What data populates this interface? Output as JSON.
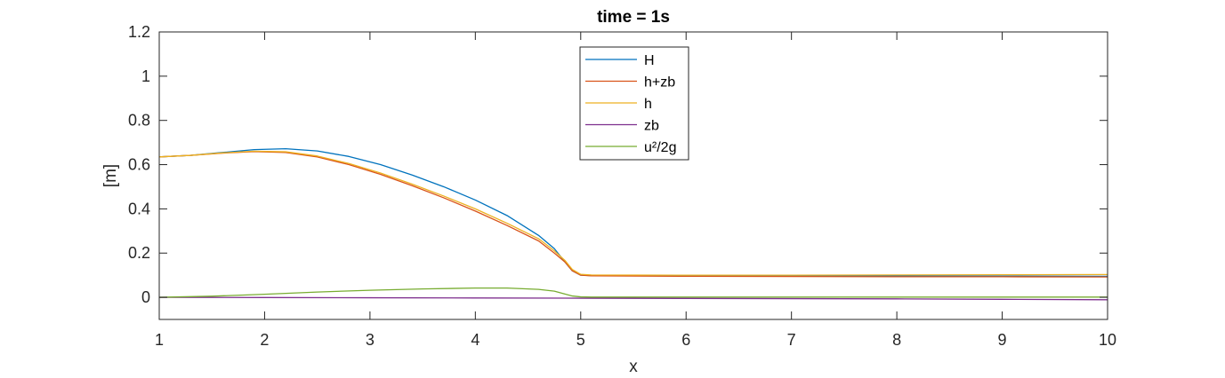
{
  "chart_data": {
    "type": "line",
    "title": "time = 1s",
    "xlabel": "x",
    "ylabel": "[m]",
    "xlim": [
      1,
      10
    ],
    "ylim": [
      -0.1,
      1.2
    ],
    "xticks": [
      1,
      2,
      3,
      4,
      5,
      6,
      7,
      8,
      9,
      10
    ],
    "yticks": [
      0,
      0.2,
      0.4,
      0.6,
      0.8,
      1,
      1.2
    ],
    "ytick_labels": [
      "0",
      "0.2",
      "0.4",
      "0.6",
      "0.8",
      "1",
      "1.2"
    ],
    "grid": false,
    "legend_position": "top-center",
    "series": [
      {
        "name": "H",
        "color": "#0072BD",
        "x": [
          1,
          1.3,
          1.6,
          1.9,
          2.2,
          2.5,
          2.8,
          3.1,
          3.4,
          3.7,
          4.0,
          4.3,
          4.6,
          4.75,
          4.85,
          4.92,
          5.0,
          5.1,
          6,
          7,
          8,
          9,
          10
        ],
        "y": [
          0.635,
          0.642,
          0.655,
          0.668,
          0.672,
          0.662,
          0.637,
          0.6,
          0.553,
          0.5,
          0.44,
          0.37,
          0.28,
          0.22,
          0.16,
          0.12,
          0.1,
          0.098,
          0.097,
          0.097,
          0.096,
          0.096,
          0.095
        ]
      },
      {
        "name": "h+zb",
        "color": "#D95319",
        "x": [
          1,
          1.3,
          1.6,
          1.9,
          2.2,
          2.5,
          2.8,
          3.1,
          3.4,
          3.7,
          4.0,
          4.3,
          4.6,
          4.75,
          4.85,
          4.92,
          5.0,
          5.1,
          6,
          7,
          8,
          9,
          10
        ],
        "y": [
          0.635,
          0.642,
          0.652,
          0.659,
          0.655,
          0.635,
          0.6,
          0.556,
          0.505,
          0.45,
          0.39,
          0.325,
          0.255,
          0.2,
          0.16,
          0.12,
          0.1,
          0.097,
          0.095,
          0.094,
          0.093,
          0.093,
          0.092
        ]
      },
      {
        "name": "h",
        "color": "#EDB120",
        "x": [
          1,
          1.3,
          1.6,
          1.9,
          2.2,
          2.5,
          2.8,
          3.1,
          3.4,
          3.7,
          4.0,
          4.3,
          4.6,
          4.75,
          4.85,
          4.92,
          5.0,
          5.1,
          6,
          7,
          8,
          9,
          10
        ],
        "y": [
          0.635,
          0.642,
          0.653,
          0.661,
          0.658,
          0.639,
          0.605,
          0.562,
          0.512,
          0.458,
          0.4,
          0.335,
          0.265,
          0.21,
          0.167,
          0.126,
          0.104,
          0.101,
          0.1,
          0.1,
          0.101,
          0.102,
          0.103
        ]
      },
      {
        "name": "zb",
        "color": "#7E2F8E",
        "x": [
          1,
          2,
          3,
          4,
          5,
          6,
          7,
          8,
          9,
          10
        ],
        "y": [
          0,
          -0.001,
          -0.002,
          -0.003,
          -0.004,
          -0.005,
          -0.006,
          -0.007,
          -0.009,
          -0.011
        ]
      },
      {
        "name": "u²/2g",
        "color": "#77AC30",
        "x": [
          1,
          1.5,
          2.0,
          2.5,
          3.0,
          3.5,
          4.0,
          4.3,
          4.6,
          4.75,
          4.85,
          4.92,
          5.0,
          5.1,
          6,
          7,
          8,
          9,
          10
        ],
        "y": [
          0,
          0.005,
          0.014,
          0.024,
          0.032,
          0.038,
          0.042,
          0.042,
          0.036,
          0.028,
          0.015,
          0.006,
          0.002,
          0.001,
          0.001,
          0.001,
          0.001,
          0.001,
          0.001
        ]
      }
    ]
  }
}
